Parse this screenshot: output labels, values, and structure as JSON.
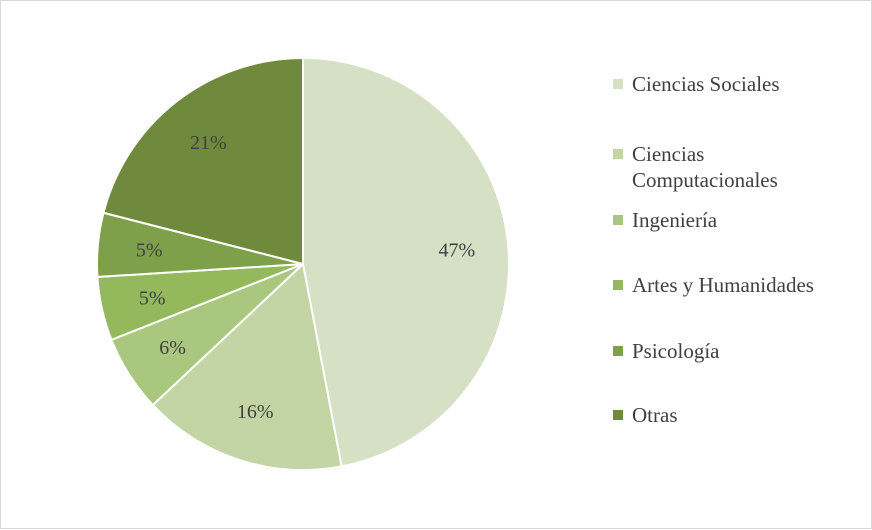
{
  "chart_data": {
    "type": "pie",
    "categories": [
      "Ciencias Sociales",
      "Ciencias Computacionales",
      "Ingeniería",
      "Artes y Humanidades",
      "Psicología",
      "Otras"
    ],
    "values": [
      47,
      16,
      6,
      5,
      5,
      21
    ],
    "labels": [
      "47%",
      "16%",
      "6%",
      "5%",
      "5%",
      "21%"
    ],
    "colors": [
      "#d6e0c4",
      "#c3d5a4",
      "#a9c77f",
      "#94b95d",
      "#7ea04a",
      "#6f8a3c"
    ],
    "title": "",
    "legend_position": "right",
    "start_angle": "12 o'clock",
    "direction": "clockwise"
  }
}
